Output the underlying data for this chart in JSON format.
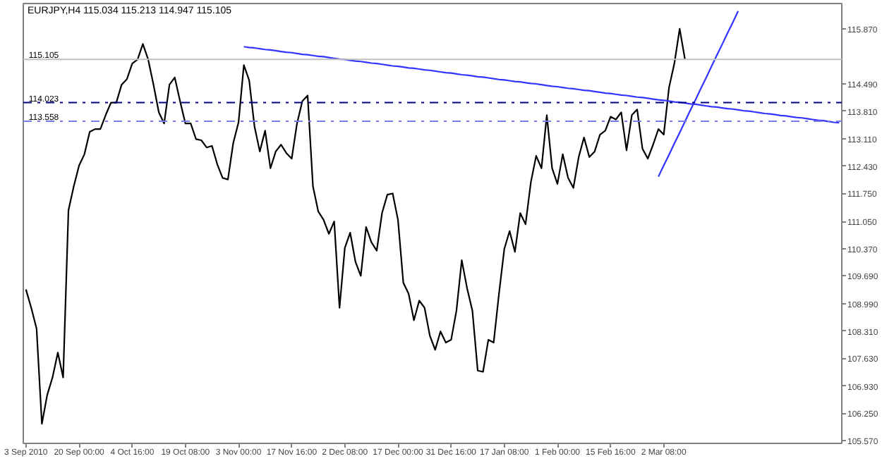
{
  "chart_data": {
    "type": "line",
    "title": "EURJPY,H4  115.034 115.213 114.947 115.105",
    "categories": [
      "3 Sep 2010",
      null,
      null,
      null,
      null,
      null,
      null,
      null,
      null,
      null,
      "20 Sep 00:00",
      null,
      null,
      null,
      null,
      null,
      null,
      null,
      null,
      null,
      "4 Oct 16:00",
      null,
      null,
      null,
      null,
      null,
      null,
      null,
      null,
      null,
      "19 Oct 08:00",
      null,
      null,
      null,
      null,
      null,
      null,
      null,
      null,
      null,
      "3 Nov 00:00",
      null,
      null,
      null,
      null,
      null,
      null,
      null,
      null,
      null,
      "17 Nov 16:00",
      null,
      null,
      null,
      null,
      null,
      null,
      null,
      null,
      null,
      "2 Dec 08:00",
      null,
      null,
      null,
      null,
      null,
      null,
      null,
      null,
      null,
      "17 Dec 00:00",
      null,
      null,
      null,
      null,
      null,
      null,
      null,
      null,
      null,
      "31 Dec 16:00",
      null,
      null,
      null,
      null,
      null,
      null,
      null,
      null,
      null,
      "17 Jan 08:00",
      null,
      null,
      null,
      null,
      null,
      null,
      null,
      null,
      null,
      "1 Feb 00:00",
      null,
      null,
      null,
      null,
      null,
      null,
      null,
      null,
      null,
      "15 Feb 16:00",
      null,
      null,
      null,
      null,
      null,
      null,
      null,
      null,
      null,
      "2 Mar 08:00",
      null,
      null,
      null,
      null,
      null,
      null,
      null,
      null,
      null,
      null,
      null,
      null,
      null,
      null,
      null,
      null,
      null,
      null,
      null,
      null,
      null,
      null,
      null,
      null,
      null,
      null,
      null,
      null,
      null,
      null,
      null,
      null,
      null
    ],
    "ylim": [
      105.5,
      116.5
    ],
    "yticks": [
      {
        "value": 115.87,
        "label": "115.870"
      },
      {
        "value": 114.49,
        "label": "114.490"
      },
      {
        "value": 113.81,
        "label": "113.810"
      },
      {
        "value": 113.11,
        "label": "113.110"
      },
      {
        "value": 112.43,
        "label": "112.430"
      },
      {
        "value": 111.75,
        "label": "111.750"
      },
      {
        "value": 111.05,
        "label": "111.050"
      },
      {
        "value": 110.37,
        "label": "110.370"
      },
      {
        "value": 109.69,
        "label": "109.690"
      },
      {
        "value": 108.99,
        "label": "108.990"
      },
      {
        "value": 108.31,
        "label": "108.310"
      },
      {
        "value": 107.63,
        "label": "107.630"
      },
      {
        "value": 106.93,
        "label": "106.930"
      },
      {
        "value": 106.25,
        "label": "106.250"
      },
      {
        "value": 105.57,
        "label": "105.570"
      }
    ],
    "line_style": "solid",
    "ref_lines": [
      {
        "axis": "y",
        "value": 115.105,
        "label": "115.105",
        "color": "#c0c0c0",
        "line_style": "solid"
      },
      {
        "axis": "y",
        "value": 114.023,
        "label": "114.023",
        "color": "#000080",
        "line_style": "dashdot"
      },
      {
        "axis": "y",
        "value": 113.558,
        "label": "113.558",
        "color": "#7b7be6",
        "line_style": "dashdot"
      }
    ],
    "series": [
      {
        "color": "#000000",
        "values": [
          109.35,
          108.89,
          108.37,
          105.99,
          106.71,
          107.15,
          107.77,
          107.15,
          111.33,
          111.93,
          112.45,
          112.73,
          113.29,
          113.36,
          113.36,
          113.71,
          114.02,
          114.02,
          114.47,
          114.61,
          115.0,
          115.1,
          115.49,
          115.1,
          114.47,
          113.78,
          113.5,
          114.47,
          114.65,
          114.06,
          113.5,
          113.5,
          113.11,
          113.08,
          112.9,
          112.94,
          112.48,
          112.14,
          112.1,
          113.01,
          113.53,
          114.96,
          114.58,
          113.43,
          112.8,
          113.32,
          112.38,
          112.8,
          112.97,
          112.76,
          112.62,
          113.5,
          114.06,
          114.2,
          111.93,
          111.3,
          111.09,
          110.74,
          111.05,
          108.89,
          110.39,
          110.77,
          110.04,
          109.69,
          110.91,
          110.53,
          110.32,
          111.26,
          111.72,
          111.75,
          111.09,
          109.52,
          109.24,
          108.58,
          109.07,
          108.89,
          108.19,
          107.84,
          108.3,
          108.02,
          108.09,
          108.82,
          110.08,
          109.38,
          108.82,
          107.32,
          107.29,
          108.09,
          108.02,
          109.24,
          110.36,
          110.81,
          110.29,
          111.26,
          110.98,
          112.03,
          112.69,
          112.38,
          113.71,
          112.38,
          111.99,
          112.73,
          112.14,
          111.89,
          112.66,
          113.15,
          112.66,
          112.8,
          113.22,
          113.32,
          113.67,
          113.6,
          113.78,
          112.83,
          113.71,
          113.85,
          112.87,
          112.62,
          112.97,
          113.36,
          113.22,
          114.4,
          115.0,
          115.87,
          115.1,
          null,
          null,
          null,
          null,
          null,
          null,
          null,
          null,
          null,
          null,
          null,
          null,
          null,
          null,
          null,
          null,
          null,
          null,
          null,
          null,
          null,
          null,
          null,
          null,
          null,
          null,
          null,
          null,
          null
        ]
      },
      {
        "color": "#3333ff",
        "values": [
          null,
          null,
          null,
          null,
          null,
          null,
          null,
          null,
          null,
          null,
          null,
          null,
          null,
          null,
          null,
          null,
          null,
          null,
          null,
          null,
          null,
          null,
          null,
          null,
          null,
          null,
          null,
          null,
          null,
          null,
          null,
          null,
          null,
          null,
          null,
          null,
          null,
          null,
          null,
          null,
          null,
          115.42,
          115.4,
          115.39,
          115.37,
          115.35,
          115.34,
          115.32,
          115.3,
          115.28,
          115.27,
          115.25,
          115.23,
          115.22,
          115.2,
          115.18,
          115.17,
          115.15,
          115.13,
          115.11,
          115.1,
          115.08,
          115.06,
          115.05,
          115.03,
          115.01,
          115.0,
          114.98,
          114.96,
          114.94,
          114.93,
          114.91,
          114.89,
          114.88,
          114.86,
          114.84,
          114.83,
          114.81,
          114.79,
          114.77,
          114.76,
          114.74,
          114.72,
          114.71,
          114.69,
          114.67,
          114.66,
          114.64,
          114.62,
          114.6,
          114.59,
          114.57,
          114.55,
          114.54,
          114.52,
          114.5,
          114.49,
          114.47,
          114.45,
          114.43,
          114.42,
          114.4,
          114.38,
          114.37,
          114.35,
          114.33,
          114.32,
          114.3,
          114.28,
          114.26,
          114.25,
          114.23,
          114.21,
          114.2,
          114.18,
          114.16,
          114.15,
          114.13,
          114.11,
          114.09,
          114.08,
          114.06,
          114.04,
          114.03,
          114.01,
          113.99,
          113.98,
          113.96,
          113.94,
          113.92,
          113.91,
          113.89,
          113.87,
          113.86,
          113.84,
          113.82,
          113.81,
          113.79,
          113.77,
          113.75,
          113.74,
          113.72,
          113.7,
          113.69,
          113.67,
          113.65,
          113.64,
          113.62,
          113.6,
          113.58,
          113.57,
          113.55,
          113.53,
          113.52
        ]
      },
      {
        "color": "#3333ff",
        "values": [
          null,
          null,
          null,
          null,
          null,
          null,
          null,
          null,
          null,
          null,
          null,
          null,
          null,
          null,
          null,
          null,
          null,
          null,
          null,
          null,
          null,
          null,
          null,
          null,
          null,
          null,
          null,
          null,
          null,
          null,
          null,
          null,
          null,
          null,
          null,
          null,
          null,
          null,
          null,
          null,
          null,
          null,
          null,
          null,
          null,
          null,
          null,
          null,
          null,
          null,
          null,
          null,
          null,
          null,
          null,
          null,
          null,
          null,
          null,
          null,
          null,
          null,
          null,
          null,
          null,
          null,
          null,
          null,
          null,
          null,
          null,
          null,
          null,
          null,
          null,
          null,
          null,
          null,
          null,
          null,
          null,
          null,
          null,
          null,
          null,
          null,
          null,
          null,
          null,
          null,
          null,
          null,
          null,
          null,
          null,
          null,
          null,
          null,
          null,
          null,
          null,
          null,
          null,
          null,
          null,
          null,
          null,
          null,
          null,
          null,
          null,
          null,
          null,
          null,
          null,
          null,
          null,
          null,
          null,
          112.17,
          112.45,
          112.72,
          113.0,
          113.27,
          113.55,
          113.83,
          114.1,
          114.38,
          114.65,
          114.93,
          115.21,
          115.48,
          115.76,
          116.03,
          116.31,
          null,
          null,
          null,
          null,
          null,
          null,
          null,
          null,
          null,
          null,
          null,
          null,
          null,
          null,
          null,
          null,
          null,
          null,
          null
        ]
      }
    ]
  }
}
